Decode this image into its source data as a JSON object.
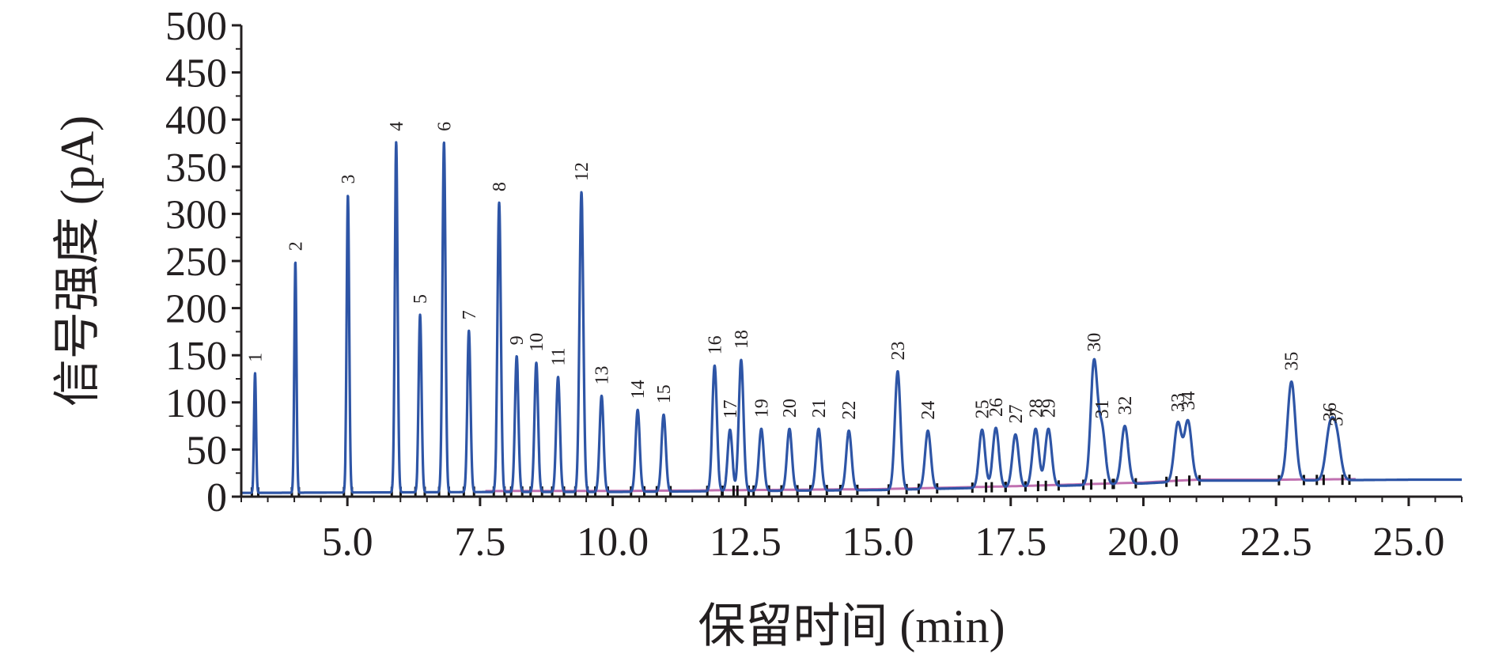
{
  "chart_data": {
    "type": "line",
    "title": "",
    "xlabel": "保留时间 (min)",
    "ylabel": "信号强度 (pA)",
    "xlim": [
      3.0,
      26.0
    ],
    "ylim": [
      0,
      500
    ],
    "x_ticks": [
      5.0,
      7.5,
      10.0,
      12.5,
      15.0,
      17.5,
      20.0,
      22.5,
      25.0
    ],
    "x_tick_labels": [
      "5.0",
      "7.5",
      "10.0",
      "12.5",
      "15.0",
      "17.5",
      "20.0",
      "22.5",
      "25.0"
    ],
    "y_ticks": [
      0,
      50,
      100,
      150,
      200,
      250,
      300,
      350,
      400,
      450,
      500
    ],
    "y_tick_labels": [
      "0",
      "50",
      "100",
      "150",
      "200",
      "250",
      "300",
      "350",
      "400",
      "450",
      "500"
    ],
    "grid": false,
    "legend": "none",
    "colors": {
      "trace": "#2e55a6",
      "baseline": "#c070b0",
      "axis": "#231f20"
    },
    "baseline": [
      [
        3.0,
        4
      ],
      [
        8.0,
        5
      ],
      [
        10.0,
        5
      ],
      [
        12.5,
        6
      ],
      [
        15.0,
        7
      ],
      [
        17.5,
        10
      ],
      [
        20.0,
        14
      ],
      [
        21.0,
        17
      ],
      [
        22.5,
        17
      ],
      [
        25.0,
        18
      ],
      [
        26.0,
        18
      ]
    ],
    "peaks": [
      {
        "label": "1",
        "x": 3.26,
        "y": 131
      },
      {
        "label": "2",
        "x": 4.02,
        "y": 249
      },
      {
        "label": "3",
        "x": 5.01,
        "y": 320
      },
      {
        "label": "4",
        "x": 5.92,
        "y": 376
      },
      {
        "label": "5",
        "x": 6.37,
        "y": 193
      },
      {
        "label": "6",
        "x": 6.82,
        "y": 376
      },
      {
        "label": "7",
        "x": 7.29,
        "y": 176
      },
      {
        "label": "8",
        "x": 7.86,
        "y": 312
      },
      {
        "label": "9",
        "x": 8.19,
        "y": 149
      },
      {
        "label": "10",
        "x": 8.56,
        "y": 142
      },
      {
        "label": "11",
        "x": 8.97,
        "y": 127
      },
      {
        "label": "12",
        "x": 9.41,
        "y": 323
      },
      {
        "label": "13",
        "x": 9.79,
        "y": 107
      },
      {
        "label": "14",
        "x": 10.47,
        "y": 92
      },
      {
        "label": "15",
        "x": 10.96,
        "y": 87
      },
      {
        "label": "16",
        "x": 11.92,
        "y": 139
      },
      {
        "label": "17",
        "x": 12.21,
        "y": 71
      },
      {
        "label": "18",
        "x": 12.42,
        "y": 145
      },
      {
        "label": "19",
        "x": 12.8,
        "y": 72
      },
      {
        "label": "20",
        "x": 13.33,
        "y": 72
      },
      {
        "label": "21",
        "x": 13.88,
        "y": 72
      },
      {
        "label": "22",
        "x": 14.45,
        "y": 70
      },
      {
        "label": "23",
        "x": 15.37,
        "y": 133
      },
      {
        "label": "24",
        "x": 15.94,
        "y": 70
      },
      {
        "label": "25",
        "x": 16.96,
        "y": 71
      },
      {
        "label": "26",
        "x": 17.22,
        "y": 73
      },
      {
        "label": "27",
        "x": 17.59,
        "y": 66
      },
      {
        "label": "28",
        "x": 17.97,
        "y": 72
      },
      {
        "label": "29",
        "x": 18.21,
        "y": 72
      },
      {
        "label": "30",
        "x": 19.07,
        "y": 142
      },
      {
        "label": "31",
        "x": 19.22,
        "y": 71
      },
      {
        "label": "32",
        "x": 19.65,
        "y": 75
      },
      {
        "label": "33",
        "x": 20.65,
        "y": 78
      },
      {
        "label": "34",
        "x": 20.84,
        "y": 80
      },
      {
        "label": "35",
        "x": 22.79,
        "y": 122
      },
      {
        "label": "36",
        "x": 23.51,
        "y": 68
      },
      {
        "label": "37",
        "x": 23.64,
        "y": 63
      }
    ]
  }
}
